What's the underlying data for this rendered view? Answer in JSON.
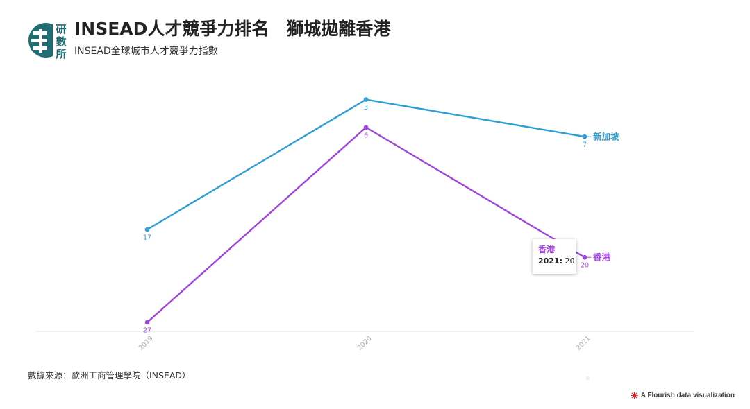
{
  "header": {
    "title": "INSEAD人才競爭力排名　獅城拋離香港",
    "subtitle": "INSEAD全球城市人才競爭力指數",
    "logo_text": [
      "研",
      "數",
      "所"
    ]
  },
  "footer": {
    "source": "數據來源：歐洲工商管理學院（INSEAD）",
    "credit": "A Flourish data visualization"
  },
  "tooltip": {
    "series": "香港",
    "year": "2021:",
    "value": "20"
  },
  "colors": {
    "singapore": "#2e9fd4",
    "hongkong": "#a044e0",
    "logo": "#1f6e73"
  },
  "chart_data": {
    "type": "line",
    "x": [
      "2019",
      "2020",
      "2021"
    ],
    "y_reversed": true,
    "series": [
      {
        "name": "新加坡",
        "values": [
          17,
          3,
          7
        ],
        "color": "#2e9fd4"
      },
      {
        "name": "香港",
        "values": [
          27,
          6,
          20
        ],
        "color": "#a044e0"
      }
    ]
  }
}
